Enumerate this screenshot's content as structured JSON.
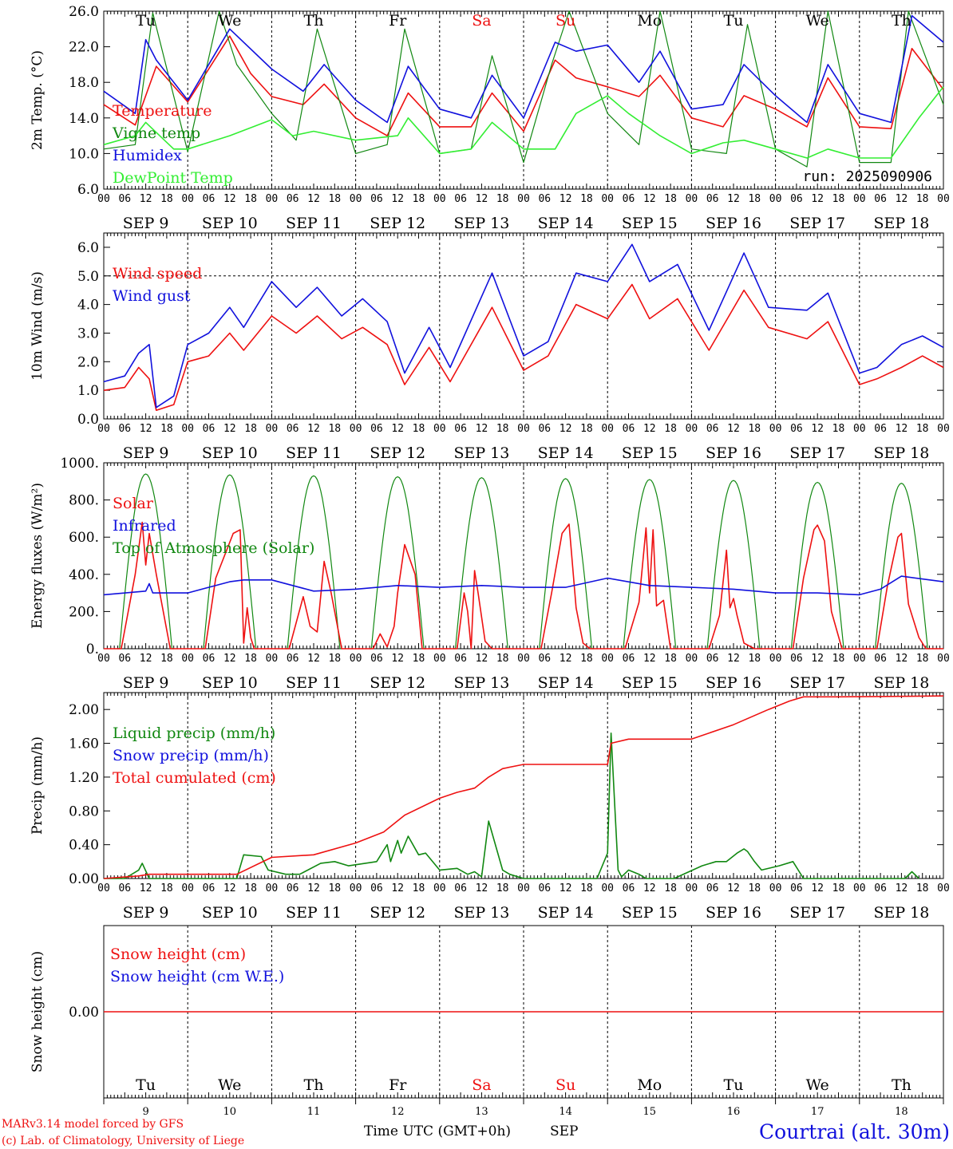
{
  "colors": {
    "red": "#ee1111",
    "green": "#118811",
    "lightgreen": "#33ee33",
    "blue": "#1111dd",
    "black": "#000000"
  },
  "days": [
    "9",
    "10",
    "11",
    "12",
    "13",
    "14",
    "15",
    "16",
    "17",
    "18"
  ],
  "date_labels": [
    "SEP  9",
    "SEP 10",
    "SEP 11",
    "SEP 12",
    "SEP 13",
    "SEP 14",
    "SEP 15",
    "SEP 16",
    "SEP 17",
    "SEP 18"
  ],
  "weekdays": [
    "Tu",
    "We",
    "Th",
    "Fr",
    "Sa",
    "Su",
    "Mo",
    "Tu",
    "We",
    "Th"
  ],
  "weekday_colors": [
    "#000000",
    "#000000",
    "#000000",
    "#000000",
    "#ee1111",
    "#ee1111",
    "#000000",
    "#000000",
    "#000000",
    "#000000"
  ],
  "hour_ticks": [
    "00",
    "06",
    "12",
    "18"
  ],
  "footer": {
    "model_line": "MARv3.14 model forced by GFS",
    "credit_line": "(c) Lab. of Climatology, University of Liege",
    "time_label": "Time UTC (GMT+0h)",
    "month_label": "SEP",
    "station": "Courtrai (alt. 30m)"
  },
  "chart_data": [
    {
      "type": "line",
      "ylabel": "2m Temp. (°C)",
      "ylim": [
        6,
        26
      ],
      "yticks": [
        "26.0",
        "22.0",
        "18.0",
        "14.0",
        "10.0",
        "6.0"
      ],
      "run_label": "run: 2025090906",
      "x_unit": "hours since 2025-09-09 00 UTC",
      "series": [
        {
          "name": "Temperature",
          "color": "#ee1111",
          "x": [
            0,
            9,
            15,
            24,
            36,
            42,
            48,
            57,
            63,
            72,
            81,
            87,
            96,
            105,
            111,
            120,
            129,
            135,
            144,
            153,
            159,
            168,
            177,
            183,
            192,
            201,
            207,
            216,
            225,
            231,
            240
          ],
          "y": [
            15.5,
            13.2,
            19.8,
            15.8,
            23.2,
            19.0,
            16.4,
            15.5,
            17.8,
            14.0,
            12.0,
            16.8,
            13.0,
            13.0,
            16.8,
            12.5,
            20.5,
            18.5,
            17.5,
            16.4,
            18.8,
            14.0,
            13.0,
            16.5,
            15.0,
            13.0,
            18.5,
            13.0,
            12.8,
            21.8,
            17.2
          ]
        },
        {
          "name": "Vigne temp",
          "color": "#118811",
          "x": [
            0,
            9,
            14,
            24,
            33,
            38,
            48,
            55,
            61,
            72,
            81,
            86,
            96,
            105,
            111,
            120,
            128,
            133,
            144,
            153,
            159,
            168,
            178,
            184,
            192,
            201,
            207,
            216,
            225,
            230,
            240
          ],
          "y": [
            10.5,
            11.0,
            25.8,
            10.2,
            26.0,
            20.0,
            14.5,
            11.5,
            24.0,
            10.0,
            11.0,
            24.0,
            10.0,
            10.5,
            21.0,
            9.0,
            20.0,
            26.0,
            14.5,
            11.0,
            26.0,
            10.5,
            10.0,
            24.5,
            10.5,
            8.5,
            26.0,
            9.0,
            9.0,
            26.0,
            15.5
          ]
        },
        {
          "name": "Humidex",
          "color": "#1111dd",
          "x": [
            0,
            9,
            12,
            15,
            24,
            36,
            48,
            57,
            63,
            72,
            81,
            87,
            96,
            105,
            111,
            120,
            129,
            135,
            144,
            153,
            159,
            168,
            177,
            183,
            192,
            201,
            207,
            216,
            225,
            231,
            240
          ],
          "y": [
            17.0,
            14.5,
            22.8,
            20.5,
            16.0,
            24.0,
            19.5,
            17.0,
            20.0,
            16.0,
            13.5,
            19.8,
            15.0,
            14.0,
            18.8,
            14.0,
            22.5,
            21.5,
            22.2,
            18.0,
            21.5,
            15.0,
            15.5,
            20.0,
            16.5,
            13.5,
            20.0,
            14.5,
            13.5,
            25.5,
            22.5
          ]
        },
        {
          "name": "DewPoint Temp",
          "color": "#33ee33",
          "x": [
            0,
            9,
            12,
            20,
            24,
            36,
            48,
            54,
            60,
            72,
            84,
            87,
            96,
            105,
            111,
            120,
            129,
            135,
            144,
            150,
            159,
            168,
            177,
            183,
            192,
            201,
            207,
            216,
            225,
            233,
            240
          ],
          "y": [
            11.0,
            12.0,
            13.5,
            10.5,
            10.5,
            12.0,
            13.8,
            12.0,
            12.5,
            11.5,
            12.0,
            14.0,
            10.0,
            10.5,
            13.5,
            10.5,
            10.5,
            14.5,
            16.5,
            14.5,
            12.0,
            10.0,
            11.2,
            11.5,
            10.5,
            9.5,
            10.5,
            9.5,
            9.5,
            14.0,
            17.5
          ]
        }
      ]
    },
    {
      "type": "line",
      "ylabel": "10m Wind (m/s)",
      "ylim": [
        0,
        6.5
      ],
      "yticks": [
        "6.0",
        "5.0",
        "4.0",
        "3.0",
        "2.0",
        "1.0",
        "0.0"
      ],
      "dashed_ref": 5.0,
      "x_unit": "hours since 2025-09-09 00 UTC",
      "series": [
        {
          "name": "Wind speed",
          "color": "#ee1111",
          "x": [
            0,
            6,
            10,
            13,
            15,
            20,
            24,
            30,
            36,
            40,
            48,
            55,
            61,
            68,
            74,
            81,
            86,
            93,
            99,
            111,
            120,
            127,
            135,
            144,
            151,
            156,
            164,
            173,
            183,
            190,
            201,
            207,
            216,
            221,
            228,
            234,
            240
          ],
          "y": [
            1.0,
            1.1,
            1.8,
            1.4,
            0.3,
            0.5,
            2.0,
            2.2,
            3.0,
            2.4,
            3.6,
            3.0,
            3.6,
            2.8,
            3.2,
            2.6,
            1.2,
            2.5,
            1.3,
            3.9,
            1.7,
            2.2,
            4.0,
            3.5,
            4.7,
            3.5,
            4.2,
            2.4,
            4.5,
            3.2,
            2.8,
            3.4,
            1.2,
            1.4,
            1.8,
            2.2,
            1.8
          ]
        },
        {
          "name": "Wind gust",
          "color": "#1111dd",
          "x": [
            0,
            6,
            10,
            13,
            15,
            20,
            24,
            30,
            36,
            40,
            48,
            55,
            61,
            68,
            74,
            81,
            86,
            93,
            99,
            111,
            120,
            127,
            135,
            144,
            151,
            156,
            164,
            173,
            183,
            190,
            201,
            207,
            216,
            221,
            228,
            234,
            240
          ],
          "y": [
            1.3,
            1.5,
            2.3,
            2.6,
            0.4,
            0.8,
            2.6,
            3.0,
            3.9,
            3.2,
            4.8,
            3.9,
            4.6,
            3.6,
            4.2,
            3.4,
            1.6,
            3.2,
            1.8,
            5.1,
            2.2,
            2.7,
            5.1,
            4.8,
            6.1,
            4.8,
            5.4,
            3.1,
            5.8,
            3.9,
            3.8,
            4.4,
            1.6,
            1.8,
            2.6,
            2.9,
            2.5
          ]
        }
      ]
    },
    {
      "type": "line",
      "ylabel": "Energy fluxes (W/m²)",
      "ylim": [
        0,
        1000
      ],
      "yticks": [
        "1000.",
        "800.",
        "600.",
        "400.",
        "200.",
        "0."
      ],
      "x_unit": "hours since 2025-09-09 00 UTC",
      "toa_peaks": [
        940,
        935,
        930,
        925,
        920,
        915,
        910,
        905,
        895,
        890
      ],
      "solar_days": [
        {
          "x": [
            5,
            9,
            11,
            12,
            13,
            15,
            19
          ],
          "y": [
            0,
            400,
            680,
            450,
            620,
            400,
            0
          ]
        },
        {
          "x": [
            29,
            32,
            37,
            39,
            40,
            41,
            42,
            43
          ],
          "y": [
            0,
            380,
            620,
            640,
            30,
            220,
            60,
            0
          ]
        },
        {
          "x": [
            53,
            57,
            59,
            61,
            63,
            65,
            68
          ],
          "y": [
            0,
            280,
            120,
            90,
            470,
            300,
            0
          ]
        },
        {
          "x": [
            77,
            79,
            81,
            83,
            84,
            86,
            89,
            91
          ],
          "y": [
            0,
            80,
            10,
            120,
            300,
            560,
            400,
            0
          ]
        },
        {
          "x": [
            101,
            103,
            104,
            105,
            106,
            107,
            109,
            111
          ],
          "y": [
            0,
            300,
            200,
            0,
            420,
            300,
            40,
            0
          ]
        },
        {
          "x": [
            125,
            128,
            131,
            133,
            135,
            137,
            139
          ],
          "y": [
            0,
            300,
            620,
            670,
            220,
            30,
            0
          ]
        },
        {
          "x": [
            149,
            153,
            155,
            156,
            157,
            158,
            160,
            162
          ],
          "y": [
            0,
            250,
            650,
            300,
            640,
            230,
            260,
            0
          ]
        },
        {
          "x": [
            173,
            176,
            178,
            179,
            180,
            181,
            183,
            186
          ],
          "y": [
            0,
            180,
            530,
            220,
            270,
            180,
            30,
            0
          ]
        },
        {
          "x": [
            197,
            200,
            203,
            204,
            206,
            208,
            211
          ],
          "y": [
            0,
            380,
            640,
            665,
            580,
            200,
            0
          ]
        },
        {
          "x": [
            221,
            224,
            227,
            228,
            230,
            233,
            235
          ],
          "y": [
            0,
            340,
            600,
            620,
            240,
            60,
            0
          ]
        }
      ],
      "infrared": {
        "x": [
          0,
          12,
          13,
          14,
          24,
          36,
          40,
          48,
          60,
          72,
          84,
          96,
          108,
          120,
          132,
          144,
          156,
          168,
          180,
          192,
          204,
          216,
          222,
          228,
          240
        ],
        "y": [
          290,
          310,
          350,
          300,
          300,
          360,
          370,
          370,
          310,
          320,
          340,
          330,
          340,
          330,
          330,
          380,
          340,
          330,
          320,
          300,
          300,
          290,
          320,
          390,
          360
        ]
      },
      "series": [
        {
          "name": "Solar",
          "color": "#ee1111"
        },
        {
          "name": "Infrared",
          "color": "#1111dd"
        },
        {
          "name": "Top of Atmosphere (Solar)",
          "color": "#118811"
        }
      ]
    },
    {
      "type": "line",
      "ylabel": "Precip (mm/h)",
      "ylim": [
        0,
        2.2
      ],
      "yticks": [
        "2.00",
        "1.60",
        "1.20",
        "0.80",
        "0.40",
        "0.00"
      ],
      "x_unit": "hours since 2025-09-09 00 UTC",
      "series": [
        {
          "name": "Liquid precip (mm/h)",
          "color": "#118811",
          "x": [
            0,
            6,
            10,
            11,
            13,
            38,
            40,
            45,
            47,
            52,
            56,
            62,
            66,
            70,
            78,
            81,
            82,
            84,
            85,
            87,
            90,
            92,
            96,
            101,
            104,
            106,
            108,
            110,
            114,
            116,
            120,
            141,
            144,
            145,
            146,
            147,
            148,
            150,
            153,
            155,
            163,
            171,
            175,
            178,
            181,
            183,
            184,
            186,
            188,
            193,
            197,
            200,
            229,
            231,
            233
          ],
          "y": [
            0,
            0,
            0.1,
            0.18,
            0,
            0,
            0.28,
            0.26,
            0.1,
            0.05,
            0.05,
            0.18,
            0.2,
            0.15,
            0.2,
            0.4,
            0.2,
            0.45,
            0.3,
            0.5,
            0.28,
            0.3,
            0.1,
            0.12,
            0.05,
            0.08,
            0.02,
            0.68,
            0.1,
            0.05,
            0,
            0,
            0.3,
            1.72,
            0.9,
            0.1,
            0.02,
            0.1,
            0.05,
            0,
            0,
            0.15,
            0.2,
            0.2,
            0.3,
            0.35,
            0.32,
            0.2,
            0.1,
            0.15,
            0.2,
            0,
            0,
            0.08,
            0
          ]
        },
        {
          "name": "Snow precip (mm/h)",
          "color": "#1111dd",
          "x": [],
          "y": []
        },
        {
          "name": "Total cumulated (cm)",
          "color": "#ee1111",
          "x": [
            0,
            10,
            13,
            38,
            48,
            60,
            72,
            80,
            86,
            96,
            101,
            106,
            110,
            114,
            120,
            144,
            145,
            150,
            168,
            180,
            190,
            196,
            200,
            210,
            240
          ],
          "y": [
            0,
            0.03,
            0.05,
            0.05,
            0.25,
            0.28,
            0.42,
            0.55,
            0.75,
            0.95,
            1.02,
            1.07,
            1.2,
            1.3,
            1.35,
            1.35,
            1.6,
            1.65,
            1.65,
            1.82,
            2.0,
            2.1,
            2.15,
            2.15,
            2.16
          ]
        }
      ]
    },
    {
      "type": "line",
      "ylabel": "Snow height (cm)",
      "ylim": [
        -1,
        1
      ],
      "yticks": [
        "0.00"
      ],
      "x_unit": "hours since 2025-09-09 00 UTC",
      "series": [
        {
          "name": "Snow height (cm)",
          "color": "#ee1111",
          "x": [
            0,
            240
          ],
          "y": [
            0,
            0
          ]
        },
        {
          "name": "Snow height (cm W.E.)",
          "color": "#1111dd",
          "x": [],
          "y": []
        }
      ]
    }
  ]
}
